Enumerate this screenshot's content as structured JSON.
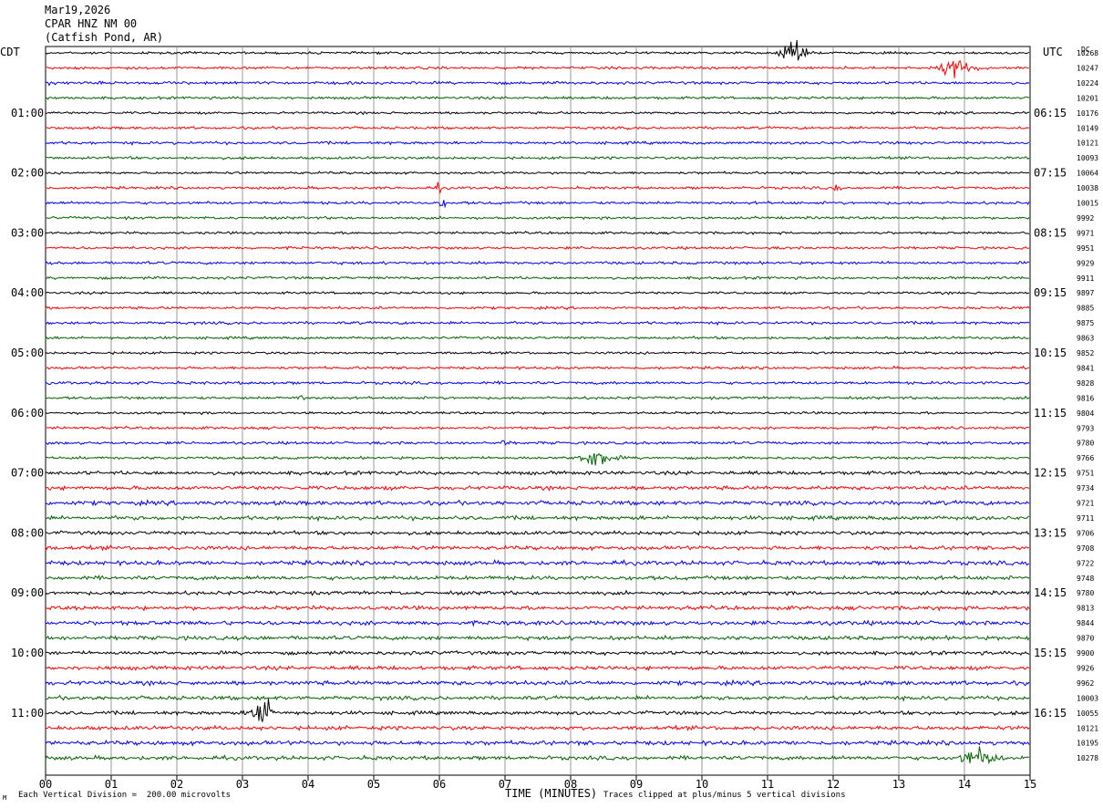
{
  "header": {
    "date": "Mar19,2026",
    "station": "CPAR HNZ NM 00",
    "location": "(Catfish Pond, AR)"
  },
  "left_tz": "CDT",
  "right_tz": "UTC",
  "dc_label": "DC",
  "footer": {
    "scale_note": "Each Vertical Division =  200.00 microvolts",
    "clip_note": "Traces clipped at plus/minus 5 vertical divisions",
    "mark": "M"
  },
  "colors": [
    "#000000",
    "#ff0000",
    "#0000ff",
    "#006400"
  ],
  "chart_data": {
    "type": "line",
    "title": "",
    "xlabel": "TIME (MINUTES)",
    "xlim": [
      0,
      15
    ],
    "x_ticks": [
      "00",
      "01",
      "02",
      "03",
      "04",
      "05",
      "06",
      "07",
      "08",
      "09",
      "10",
      "11",
      "12",
      "13",
      "14",
      "15"
    ],
    "left_hour_labels": [
      "01:00",
      "02:00",
      "03:00",
      "04:00",
      "05:00",
      "06:00",
      "07:00",
      "08:00",
      "09:00",
      "10:00",
      "11:00"
    ],
    "right_hour_labels": [
      "06:15",
      "07:15",
      "08:15",
      "09:15",
      "10:15",
      "11:15",
      "12:15",
      "13:15",
      "14:15",
      "15:15",
      "16:15"
    ],
    "traces_count": 48,
    "dc_values": [
      "10268",
      "10247",
      "10224",
      "10201",
      "10176",
      "10149",
      "10121",
      "10093",
      "10064",
      "10038",
      "10015",
      "9992",
      "9971",
      "9951",
      "9929",
      "9911",
      "9897",
      "9885",
      "9875",
      "9863",
      "9852",
      "9841",
      "9828",
      "9816",
      "9804",
      "9793",
      "9780",
      "9766",
      "9751",
      "9734",
      "9721",
      "9711",
      "9706",
      "9708",
      "9722",
      "9748",
      "9780",
      "9813",
      "9844",
      "9870",
      "9900",
      "9926",
      "9962",
      "10003",
      "10055",
      "10121",
      "10195",
      "10278"
    ],
    "events": [
      {
        "trace": 0,
        "minute": 11.4,
        "amplitude": "large"
      },
      {
        "trace": 1,
        "minute": 13.9,
        "amplitude": "medium"
      },
      {
        "trace": 2,
        "minute": 0.1,
        "amplitude": "small"
      },
      {
        "trace": 9,
        "minute": 6.0,
        "amplitude": "small"
      },
      {
        "trace": 9,
        "minute": 12.05,
        "amplitude": "small"
      },
      {
        "trace": 10,
        "minute": 6.05,
        "amplitude": "small"
      },
      {
        "trace": 23,
        "minute": 3.9,
        "amplitude": "small"
      },
      {
        "trace": 26,
        "minute": 7.0,
        "amplitude": "small"
      },
      {
        "trace": 27,
        "minute": 8.4,
        "amplitude": "medium"
      },
      {
        "trace": 44,
        "minute": 3.3,
        "amplitude": "large"
      },
      {
        "trace": 47,
        "minute": 14.2,
        "amplitude": "medium"
      }
    ]
  }
}
